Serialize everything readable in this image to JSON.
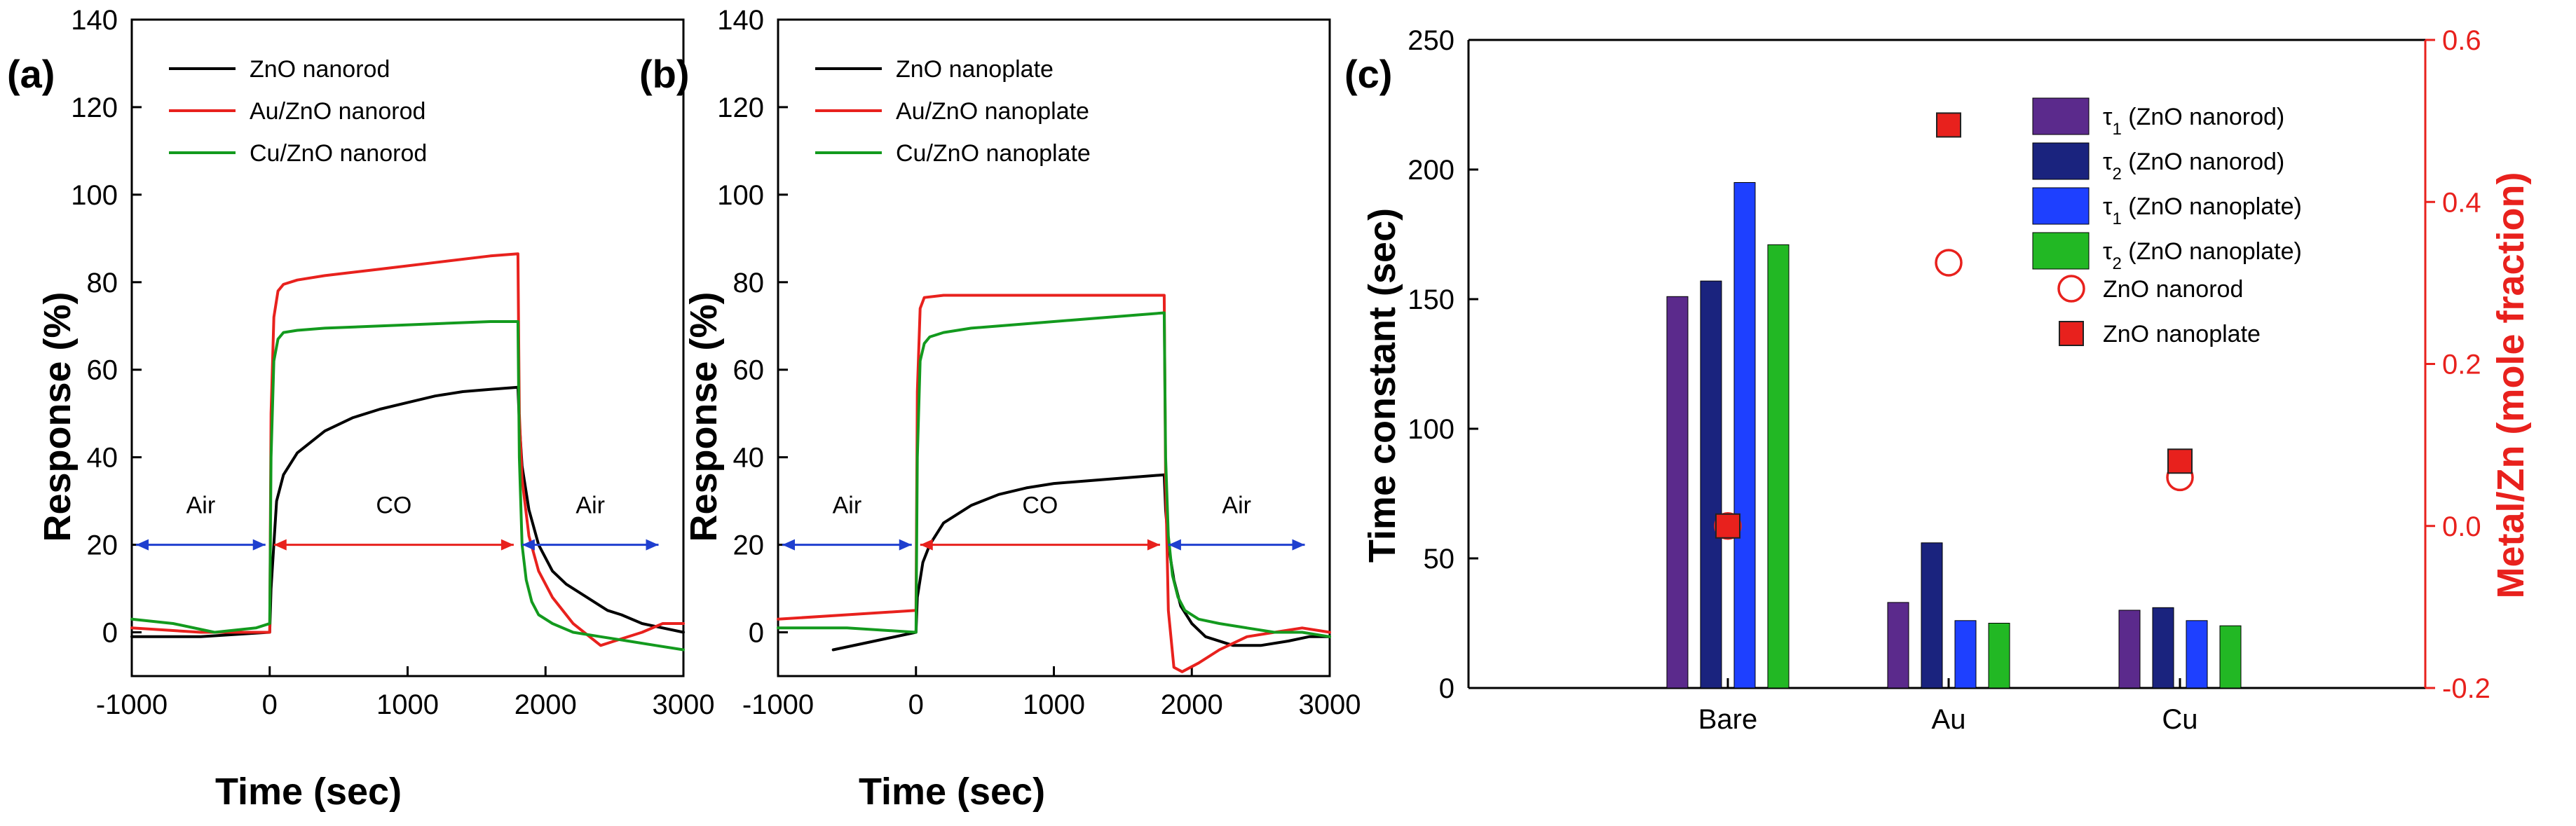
{
  "chart_data": [
    {
      "panel": "(a)",
      "type": "line",
      "xlabel": "Time (sec)",
      "ylabel": "Response (%)",
      "xlim": [
        -1000,
        3000
      ],
      "ylim": [
        -10,
        140
      ],
      "xticks": [
        -1000,
        0,
        1000,
        2000,
        3000
      ],
      "yticks": [
        0,
        20,
        40,
        60,
        80,
        100,
        120,
        140
      ],
      "annotations": [
        {
          "text": "Air",
          "x_range": [
            -1000,
            0
          ],
          "y": 20,
          "color": "#1f3fcf"
        },
        {
          "text": "CO",
          "x_range": [
            0,
            1800
          ],
          "y": 20,
          "color": "#e8211d"
        },
        {
          "text": "Air",
          "x_range": [
            1800,
            2850
          ],
          "y": 20,
          "color": "#1f3fcf"
        }
      ],
      "series": [
        {
          "name": "ZnO nanorod",
          "color": "#000000",
          "x": [
            -1000,
            -500,
            0,
            10,
            50,
            100,
            200,
            400,
            600,
            800,
            1000,
            1200,
            1400,
            1600,
            1800,
            1810,
            1830,
            1880,
            1950,
            2050,
            2150,
            2300,
            2400,
            2450,
            2550,
            2700,
            2850,
            3000
          ],
          "y": [
            -1,
            -1,
            0,
            10,
            30,
            36,
            41,
            46,
            49,
            51,
            52.5,
            54,
            55,
            55.5,
            56,
            48,
            38,
            28,
            20,
            14,
            11,
            8,
            6,
            5,
            4,
            2,
            1,
            0
          ]
        },
        {
          "name": "Au/ZnO nanorod",
          "color": "#e8211d",
          "x": [
            -1000,
            -500,
            0,
            10,
            30,
            60,
            100,
            200,
            400,
            800,
            1200,
            1600,
            1800,
            1810,
            1830,
            1880,
            1950,
            2050,
            2200,
            2400,
            2500,
            2700,
            2850,
            3000
          ],
          "y": [
            1,
            0,
            0,
            50,
            72,
            78,
            79.5,
            80.5,
            81.5,
            83,
            84.5,
            86,
            86.5,
            50,
            35,
            22,
            14,
            8,
            2,
            -3,
            -2,
            0,
            2,
            2
          ]
        },
        {
          "name": "Cu/ZnO nanorod",
          "color": "#139a1e",
          "x": [
            -1000,
            -700,
            -400,
            -100,
            0,
            10,
            30,
            60,
            100,
            200,
            400,
            800,
            1200,
            1600,
            1800,
            1810,
            1830,
            1860,
            1900,
            1950,
            2050,
            2200,
            2400,
            2600,
            2800,
            3000
          ],
          "y": [
            3,
            2,
            0,
            1,
            2,
            40,
            62,
            67,
            68.5,
            69,
            69.5,
            70,
            70.5,
            71,
            71,
            40,
            20,
            12,
            7,
            4,
            2,
            0,
            -1,
            -2,
            -3,
            -4
          ]
        }
      ]
    },
    {
      "panel": "(b)",
      "type": "line",
      "xlabel": "Time (sec)",
      "ylabel": "Response (%)",
      "xlim": [
        -1000,
        3000
      ],
      "ylim": [
        -10,
        140
      ],
      "xticks": [
        -1000,
        0,
        1000,
        2000,
        3000
      ],
      "yticks": [
        0,
        20,
        40,
        60,
        80,
        100,
        120,
        140
      ],
      "annotations": [
        {
          "text": "Air",
          "x_range": [
            -1000,
            0
          ],
          "y": 20,
          "color": "#1f3fcf"
        },
        {
          "text": "CO",
          "x_range": [
            0,
            1800
          ],
          "y": 20,
          "color": "#e8211d"
        },
        {
          "text": "Air",
          "x_range": [
            1800,
            2850
          ],
          "y": 20,
          "color": "#1f3fcf"
        }
      ],
      "series": [
        {
          "name": "ZnO nanoplate",
          "color": "#000000",
          "x": [
            -600,
            -300,
            0,
            10,
            50,
            100,
            200,
            400,
            600,
            800,
            1000,
            1200,
            1400,
            1600,
            1800,
            1810,
            1830,
            1870,
            1920,
            2000,
            2100,
            2300,
            2500,
            2700,
            2850,
            3000
          ],
          "y": [
            -4,
            -2,
            0,
            8,
            16,
            20,
            25,
            29,
            31.5,
            33,
            34,
            34.5,
            35,
            35.5,
            36,
            28,
            20,
            12,
            6,
            2,
            -1,
            -3,
            -3,
            -2,
            -1,
            -1
          ]
        },
        {
          "name": "Au/ZnO nanoplate",
          "color": "#e8211d",
          "x": [
            -1000,
            -500,
            0,
            10,
            30,
            60,
            200,
            600,
            1000,
            1400,
            1800,
            1810,
            1830,
            1870,
            1930,
            2050,
            2200,
            2400,
            2600,
            2800,
            3000
          ],
          "y": [
            3,
            4,
            5,
            55,
            74,
            76.5,
            77,
            77,
            77,
            77,
            77,
            35,
            5,
            -8,
            -9,
            -7,
            -4,
            -1,
            0,
            1,
            0
          ]
        },
        {
          "name": "Cu/ZnO nanoplate",
          "color": "#139a1e",
          "x": [
            -1000,
            -500,
            0,
            10,
            30,
            60,
            100,
            200,
            400,
            800,
            1200,
            1600,
            1800,
            1810,
            1830,
            1860,
            1900,
            1950,
            2050,
            2200,
            2400,
            2600,
            2800,
            3000
          ],
          "y": [
            1,
            1,
            0,
            40,
            62,
            66,
            67.5,
            68.5,
            69.5,
            70.5,
            71.5,
            72.5,
            73,
            40,
            22,
            13,
            8,
            5,
            3,
            2,
            1,
            0,
            0,
            -1
          ]
        }
      ]
    },
    {
      "panel": "(c)",
      "type": "bar",
      "xlabel": "",
      "ylabel": "Time constant (sec)",
      "y2label": "Metal/Zn (mole fraction)",
      "categories": [
        "Bare",
        "Au",
        "Cu"
      ],
      "ylim": [
        0,
        250
      ],
      "yticks": [
        0,
        50,
        100,
        150,
        200,
        250
      ],
      "y2lim": [
        -0.2,
        0.6
      ],
      "y2ticks": [
        -0.2,
        0.0,
        0.2,
        0.4,
        0.6
      ],
      "y2color": "#e8211d",
      "series": [
        {
          "name": "τ1 (ZnO nanorod)",
          "symbol": "τ",
          "sub": "1",
          "rest": " (ZnO nanorod)",
          "color": "#5b2a8c",
          "values": [
            151,
            33,
            30
          ]
        },
        {
          "name": "τ2 (ZnO nanorod)",
          "symbol": "τ",
          "sub": "2",
          "rest": " (ZnO nanorod)",
          "color": "#1a237e",
          "values": [
            157,
            56,
            31
          ]
        },
        {
          "name": "τ1 (ZnO nanoplate)",
          "symbol": "τ",
          "sub": "1",
          "rest": " (ZnO nanoplate)",
          "color": "#1e40ff",
          "values": [
            195,
            26,
            26
          ]
        },
        {
          "name": "τ2 (ZnO nanoplate)",
          "symbol": "τ",
          "sub": "2",
          "rest": " (ZnO nanoplate)",
          "color": "#22b824",
          "values": [
            171,
            25,
            24
          ]
        }
      ],
      "markers": [
        {
          "name": "ZnO nanorod",
          "shape": "open-circle",
          "color": "#e8211d",
          "axis": "y2",
          "values": [
            0.0,
            0.325,
            0.06
          ]
        },
        {
          "name": "ZnO nanoplate",
          "shape": "filled-square",
          "color": "#e8211d",
          "axis": "y2",
          "values": [
            0.0,
            0.495,
            0.08
          ]
        }
      ]
    }
  ]
}
